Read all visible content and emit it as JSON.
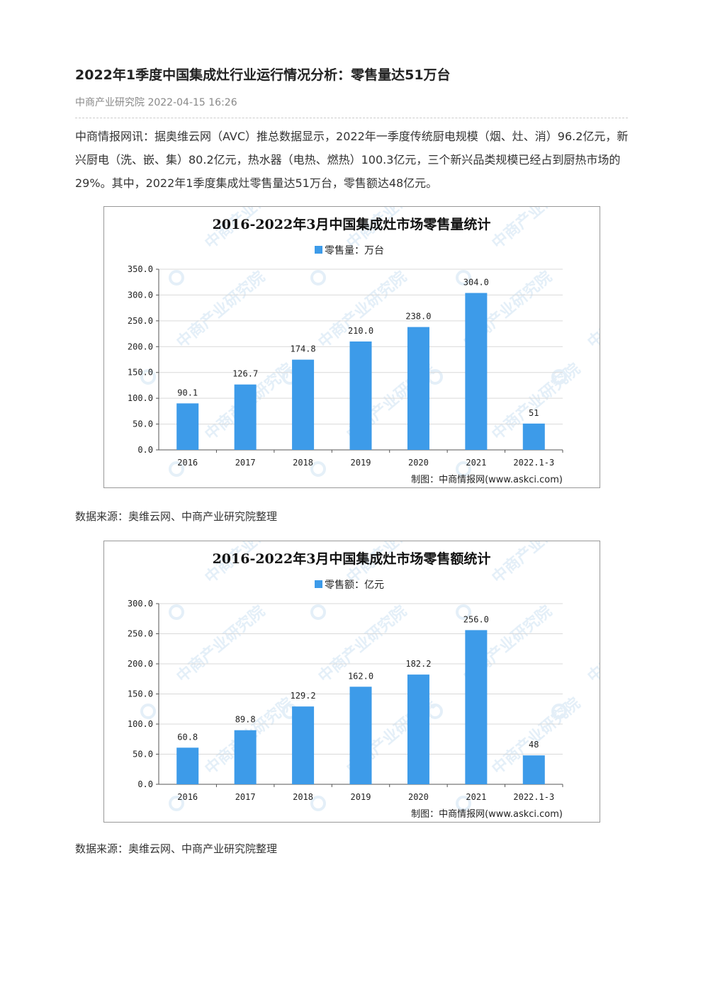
{
  "article": {
    "title": "2022年1季度中国集成灶行业运行情况分析：零售量达51万台",
    "meta": "中商产业研究院 2022-04-15 16:26",
    "paragraph": "中商情报网讯：据奥维云网（AVC）推总数据显示，2022年一季度传统厨电规模（烟、灶、消）96.2亿元，新兴厨电（洗、嵌、集）80.2亿元，热水器（电热、燃热）100.3亿元，三个新兴品类规模已经占到厨热市场的29%。其中，2022年1季度集成灶零售量达51万台，零售额达48亿元。",
    "source_1": "数据来源：奥维云网、中商产业研究院整理",
    "source_2": "数据来源：奥维云网、中商产业研究院整理"
  },
  "colors": {
    "bar": "#3d9be9",
    "grid": "#d9d9d9",
    "watermark": "#cfe3f3"
  },
  "chart_data": [
    {
      "type": "bar",
      "title": "2016-2022年3月中国集成灶市场零售量统计",
      "legend": "零售量：万台",
      "credit": "制图：中商情报网(www.askci.com)",
      "categories": [
        "2016",
        "2017",
        "2018",
        "2019",
        "2020",
        "2021",
        "2022.1-3"
      ],
      "values": [
        90.1,
        126.7,
        174.8,
        210.0,
        238.0,
        304.0,
        51
      ],
      "labels": [
        "90.1",
        "126.7",
        "174.8",
        "210.0",
        "238.0",
        "304.0",
        "51"
      ],
      "yticks": [
        "0.0",
        "50.0",
        "100.0",
        "150.0",
        "200.0",
        "250.0",
        "300.0",
        "350.0"
      ],
      "ylim": [
        0,
        350
      ],
      "grid": true,
      "legend_position": "top-center"
    },
    {
      "type": "bar",
      "title": "2016-2022年3月中国集成灶市场零售额统计",
      "legend": "零售额：亿元",
      "credit": "制图：中商情报网(www.askci.com)",
      "categories": [
        "2016",
        "2017",
        "2018",
        "2019",
        "2020",
        "2021",
        "2022.1-3"
      ],
      "values": [
        60.8,
        89.8,
        129.2,
        162.0,
        182.2,
        256.0,
        48
      ],
      "labels": [
        "60.8",
        "89.8",
        "129.2",
        "162.0",
        "182.2",
        "256.0",
        "48"
      ],
      "yticks": [
        "0.0",
        "50.0",
        "100.0",
        "150.0",
        "200.0",
        "250.0",
        "300.0"
      ],
      "ylim": [
        0,
        300
      ],
      "grid": true,
      "legend_position": "top-center"
    }
  ]
}
